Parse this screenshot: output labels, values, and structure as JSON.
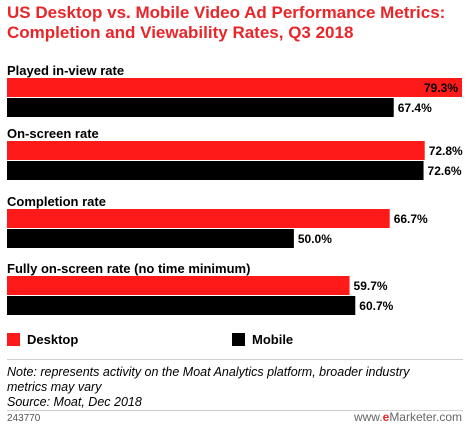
{
  "header": {
    "title_line1": "US Desktop vs. Mobile Video Ad Performance Metrics:",
    "title_line2": "Completion and Viewability Rates, Q3 2018"
  },
  "colors": {
    "desktop": "#ff1a1a",
    "mobile": "#000000",
    "accent": "#e8262a"
  },
  "legend": [
    {
      "label": "Desktop",
      "color": "#ff1a1a"
    },
    {
      "label": "Mobile",
      "color": "#000000"
    }
  ],
  "chart_data": {
    "type": "bar",
    "orientation": "horizontal",
    "title": "US Desktop vs. Mobile Video Ad Performance Metrics: Completion and Viewability Rates, Q3 2018",
    "categories": [
      "Played in-view rate",
      "On-screen rate",
      "Completion rate",
      "Fully on-screen rate (no time minimum)"
    ],
    "series": [
      {
        "name": "Desktop",
        "values": [
          79.3,
          72.8,
          66.7,
          59.7
        ]
      },
      {
        "name": "Mobile",
        "values": [
          67.4,
          72.6,
          50.0,
          60.7
        ]
      }
    ],
    "value_labels": {
      "Desktop": [
        "79.3%",
        "72.8%",
        "66.7%",
        "59.7%"
      ],
      "Mobile": [
        "67.4%",
        "72.6%",
        "50.0%",
        "60.7%"
      ]
    },
    "unit": "%",
    "xlim": [
      0,
      79.3
    ],
    "legend_position": "bottom-left",
    "grid": false
  },
  "note": {
    "line1": "Note: represents activity on the Moat Analytics platform, broader industry",
    "line2": "metrics may vary",
    "source": "Source: Moat, Dec 2018"
  },
  "footer": {
    "id": "243770",
    "brand_prefix": "www.",
    "brand_e": "e",
    "brand_rest": "Marketer.com"
  }
}
